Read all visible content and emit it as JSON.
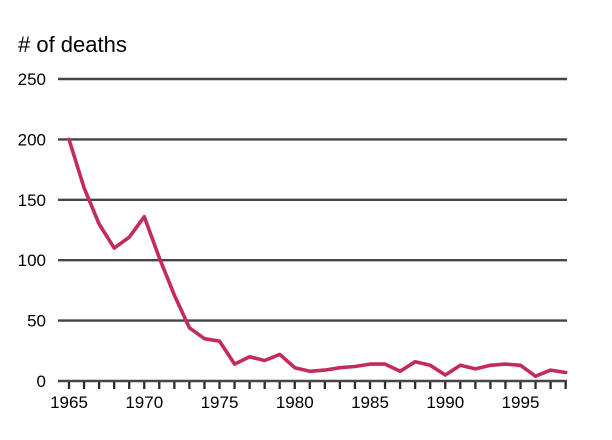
{
  "chart_data": {
    "type": "line",
    "title": "# of deaths",
    "x": [
      1965,
      1966,
      1967,
      1968,
      1969,
      1970,
      1971,
      1972,
      1973,
      1974,
      1975,
      1976,
      1977,
      1978,
      1979,
      1980,
      1981,
      1982,
      1983,
      1984,
      1985,
      1986,
      1987,
      1988,
      1989,
      1990,
      1991,
      1992,
      1993,
      1994,
      1995,
      1996,
      1997,
      1998
    ],
    "values": [
      200,
      160,
      130,
      110,
      119,
      136,
      102,
      71,
      44,
      35,
      33,
      14,
      20,
      17,
      22,
      11,
      8,
      9,
      11,
      12,
      14,
      14,
      8,
      16,
      13,
      5,
      13,
      10,
      13,
      14,
      13,
      4,
      9,
      7
    ],
    "yticks": [
      0,
      50,
      100,
      150,
      200,
      250
    ],
    "xtick_labels": [
      "1965",
      "1970",
      "1975",
      "1980",
      "1985",
      "1990",
      "1995"
    ],
    "ylim": [
      0,
      250
    ],
    "xlabel": "",
    "ylabel": "# of deaths",
    "grid": "horizontal",
    "legend": "none",
    "line_color": "#c42a60",
    "grid_color": "#454545",
    "tick_color": "#2b2b2b"
  }
}
